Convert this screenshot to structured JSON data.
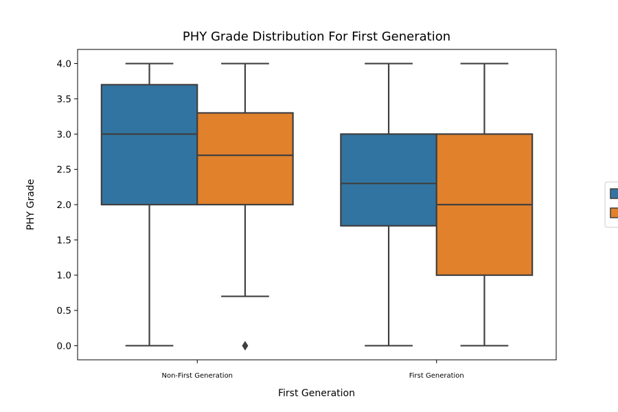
{
  "chart_data": {
    "type": "box",
    "title": "PHY Grade Distribution For First Generation",
    "xlabel": "First Generation",
    "ylabel": "PHY Grade",
    "categories": [
      "Non-First Generation",
      "First Generation"
    ],
    "ylim": [
      -0.2,
      4.2
    ],
    "yticks": [
      0.0,
      0.5,
      1.0,
      1.5,
      2.0,
      2.5,
      3.0,
      3.5,
      4.0
    ],
    "grid": false,
    "legend": {
      "placement": "right-center",
      "labels_visible": false
    },
    "series": [
      {
        "color": "#3274a1",
        "boxes": [
          {
            "min": 0.0,
            "q1": 2.0,
            "median": 3.0,
            "q3": 3.7,
            "max": 4.0,
            "outliers": []
          },
          {
            "min": 0.0,
            "q1": 1.7,
            "median": 2.3,
            "q3": 3.0,
            "max": 4.0,
            "outliers": []
          }
        ]
      },
      {
        "color": "#e1812c",
        "boxes": [
          {
            "min": 0.7,
            "q1": 2.0,
            "median": 2.7,
            "q3": 3.3,
            "max": 4.0,
            "outliers": [
              0.0
            ]
          },
          {
            "min": 0.0,
            "q1": 1.0,
            "median": 2.0,
            "q3": 3.0,
            "max": 4.0,
            "outliers": []
          }
        ]
      }
    ]
  }
}
